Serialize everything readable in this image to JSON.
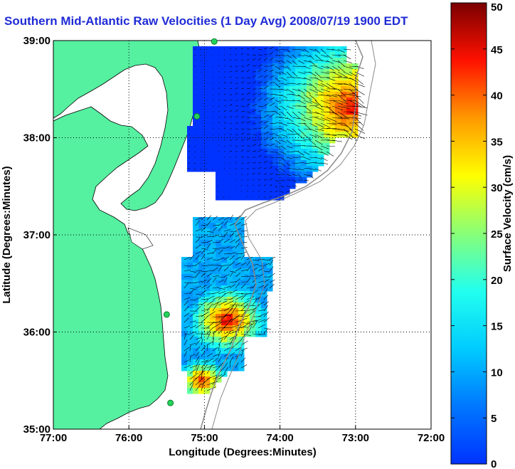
{
  "title": "Southern Mid-Atlantic Raw Velocities (1 Day Avg) 2008/07/19 1900 EDT",
  "xlabel": "Longitude (Degrees:Minutes)",
  "ylabel": "Latitude (Degrees:Minutes)",
  "colorbar_label": "Surface Velocity (cm/s)",
  "colors": {
    "land": "#55f0a0",
    "title": "#1f2bd6",
    "vector": "#000000",
    "station": "#22d45a"
  },
  "map": {
    "lon_range": [
      -77,
      -72
    ],
    "lat_range": [
      35,
      39
    ],
    "lon_ticks": [
      {
        "value": -77,
        "label": "77:00"
      },
      {
        "value": -76,
        "label": "76:00"
      },
      {
        "value": -75,
        "label": "75:00"
      },
      {
        "value": -74,
        "label": "74:00"
      },
      {
        "value": -73,
        "label": "73:00"
      },
      {
        "value": -72,
        "label": "72:00"
      }
    ],
    "lat_ticks": [
      {
        "value": 35,
        "label": "35:00"
      },
      {
        "value": 36,
        "label": "36:00"
      },
      {
        "value": 37,
        "label": "37:00"
      },
      {
        "value": 38,
        "label": "38:00"
      },
      {
        "value": 39,
        "label": "39:00"
      }
    ]
  },
  "colorbar": {
    "range": [
      0,
      50
    ],
    "ticks": [
      {
        "value": 0,
        "label": "0"
      },
      {
        "value": 5,
        "label": "5"
      },
      {
        "value": 10,
        "label": "10"
      },
      {
        "value": 15,
        "label": "15"
      },
      {
        "value": 20,
        "label": "20"
      },
      {
        "value": 25,
        "label": "25"
      },
      {
        "value": 30,
        "label": "30"
      },
      {
        "value": 35,
        "label": "35"
      },
      {
        "value": 40,
        "label": "40"
      },
      {
        "value": 45,
        "label": "45"
      },
      {
        "value": 50,
        "label": "50"
      }
    ]
  },
  "stations": [
    {
      "lon": -74.87,
      "lat": 38.99
    },
    {
      "lon": -75.1,
      "lat": 38.22
    },
    {
      "lon": -75.5,
      "lat": 36.18
    },
    {
      "lon": -75.45,
      "lat": 35.27
    }
  ]
}
